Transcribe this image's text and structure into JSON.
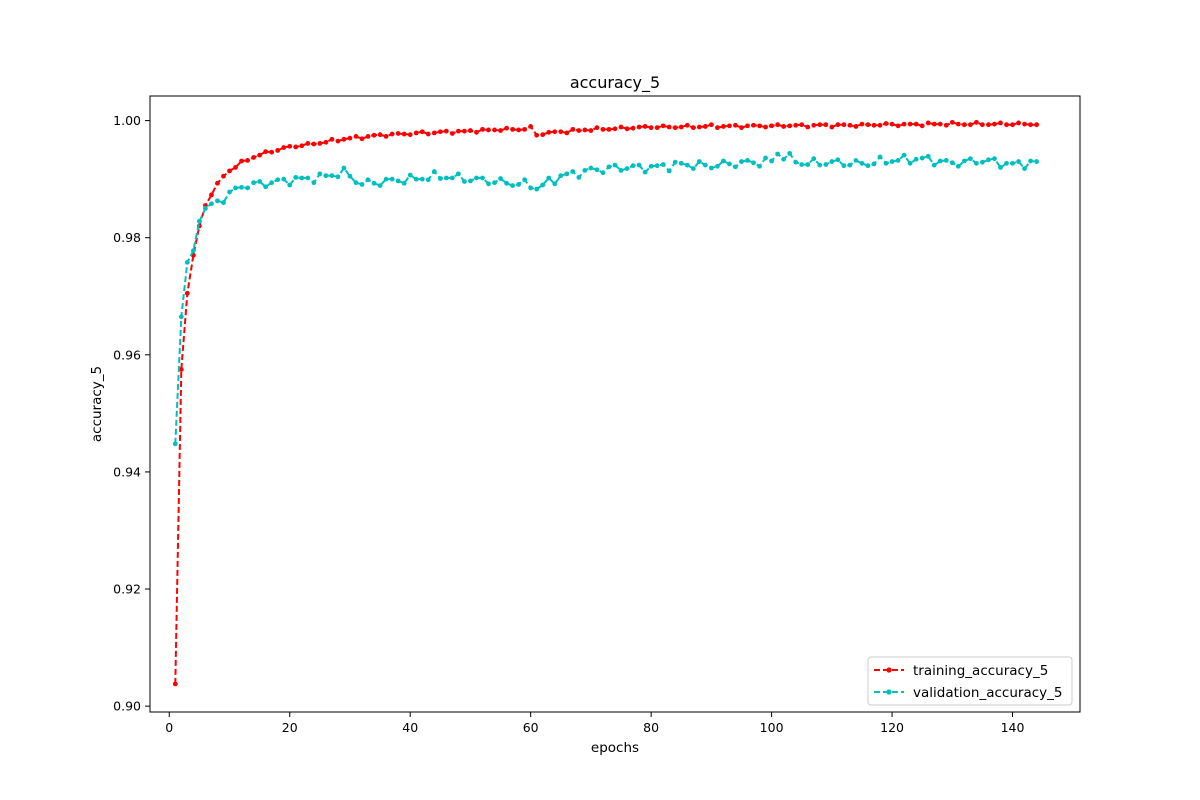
{
  "chart_data": {
    "type": "line",
    "title": "accuracy_5",
    "xlabel": "epochs",
    "ylabel": "accuracy_5",
    "xlim": [
      -3.2,
      151.2
    ],
    "ylim": [
      0.899,
      1.0042
    ],
    "xticks": [
      0,
      20,
      40,
      60,
      80,
      100,
      120,
      140
    ],
    "yticks": [
      0.9,
      0.92,
      0.94,
      0.96,
      0.98,
      1.0
    ],
    "xtick_labels": [
      "0",
      "20",
      "40",
      "60",
      "80",
      "100",
      "120",
      "140"
    ],
    "ytick_labels": [
      "0.90",
      "0.92",
      "0.94",
      "0.96",
      "0.98",
      "1.00"
    ],
    "grid": false,
    "legend_position": "bottom-right",
    "series": [
      {
        "name": "training_accuracy_5",
        "color": "#ff0000",
        "linestyle": "dashed",
        "marker": "circle",
        "anchors": [
          [
            1,
            0.9038
          ],
          [
            2,
            0.9575
          ],
          [
            3,
            0.9705
          ],
          [
            4,
            0.977
          ],
          [
            5,
            0.982
          ],
          [
            6,
            0.9855
          ],
          [
            7,
            0.9875
          ],
          [
            8,
            0.989
          ],
          [
            9,
            0.9905
          ],
          [
            10,
            0.9915
          ],
          [
            12,
            0.9928
          ],
          [
            14,
            0.9938
          ],
          [
            16,
            0.9945
          ],
          [
            18,
            0.995
          ],
          [
            20,
            0.9955
          ],
          [
            25,
            0.9962
          ],
          [
            30,
            0.997
          ],
          [
            35,
            0.9975
          ],
          [
            40,
            0.9978
          ],
          [
            45,
            0.998
          ],
          [
            50,
            0.9982
          ],
          [
            55,
            0.9985
          ],
          [
            59,
            0.9985
          ],
          [
            60,
            0.9988
          ],
          [
            61,
            0.9975
          ],
          [
            62,
            0.9978
          ],
          [
            70,
            0.9985
          ],
          [
            80,
            0.9989
          ],
          [
            90,
            0.999
          ],
          [
            100,
            0.9991
          ],
          [
            110,
            0.9992
          ],
          [
            120,
            0.9993
          ],
          [
            130,
            0.9994
          ],
          [
            144,
            0.9994
          ]
        ],
        "x": [],
        "values": []
      },
      {
        "name": "validation_accuracy_5",
        "color": "#00bfbf",
        "linestyle": "dashed",
        "marker": "circle",
        "anchors": [
          [
            1,
            0.9448
          ],
          [
            2,
            0.9665
          ],
          [
            3,
            0.9758
          ],
          [
            4,
            0.9778
          ],
          [
            5,
            0.9828
          ],
          [
            6,
            0.985
          ],
          [
            8,
            0.986
          ],
          [
            10,
            0.9875
          ],
          [
            12,
            0.9888
          ],
          [
            15,
            0.9892
          ],
          [
            20,
            0.9898
          ],
          [
            25,
            0.9903
          ],
          [
            29,
            0.9912
          ],
          [
            32,
            0.9892
          ],
          [
            40,
            0.99
          ],
          [
            45,
            0.9905
          ],
          [
            50,
            0.99
          ],
          [
            55,
            0.9895
          ],
          [
            60,
            0.989
          ],
          [
            61,
            0.9885
          ],
          [
            65,
            0.9905
          ],
          [
            70,
            0.9915
          ],
          [
            75,
            0.992
          ],
          [
            80,
            0.992
          ],
          [
            85,
            0.9925
          ],
          [
            90,
            0.9923
          ],
          [
            95,
            0.9928
          ],
          [
            100,
            0.993
          ],
          [
            101,
            0.9944
          ],
          [
            105,
            0.9927
          ],
          [
            110,
            0.9928
          ],
          [
            115,
            0.9926
          ],
          [
            120,
            0.9932
          ],
          [
            125,
            0.9935
          ],
          [
            130,
            0.9927
          ],
          [
            135,
            0.9932
          ],
          [
            140,
            0.9925
          ],
          [
            144,
            0.9928
          ]
        ],
        "x": [],
        "values": []
      }
    ]
  }
}
